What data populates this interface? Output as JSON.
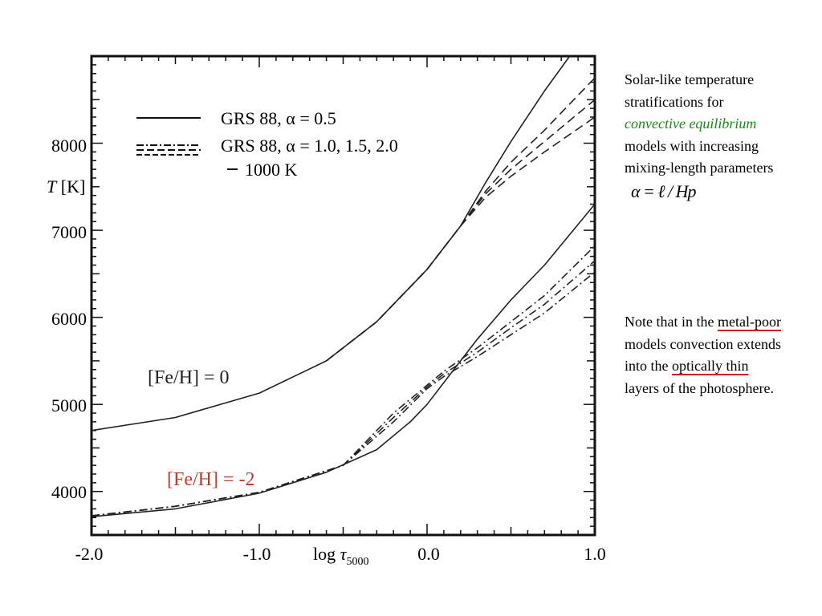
{
  "chart_data": {
    "type": "line",
    "xlabel": "log τ5000",
    "ylabel": "T [K]",
    "xlim": [
      -2.0,
      1.0
    ],
    "ylim": [
      3500,
      9000
    ],
    "xticks": [
      -2.0,
      -1.0,
      0.0,
      1.0
    ],
    "xtick_labels": [
      "-2.0",
      "-1.0",
      "0.0",
      "1.0"
    ],
    "yticks": [
      4000,
      5000,
      6000,
      7000,
      8000
    ],
    "ytick_labels": [
      "4000",
      "5000",
      "6000",
      "7000",
      "8000"
    ],
    "legend": {
      "placement": "top-left",
      "entries": [
        {
          "style": "solid",
          "label": "GRS 88, α = 0.5"
        },
        {
          "style": "dashed",
          "label": "GRS 88, α = 1.0, 1.5, 2.0"
        },
        {
          "style": "tick",
          "label": "1000 K"
        }
      ]
    },
    "annotations": [
      {
        "text": "[Fe/H] = 0",
        "color": "#222222"
      },
      {
        "text": "[Fe/H] = -2",
        "color": "#c0392b"
      }
    ],
    "series": [
      {
        "group": "[Fe/H] = 0",
        "style": "solid",
        "x": [
          -2.0,
          -1.5,
          -1.0,
          -0.6,
          -0.3,
          0.0,
          0.2,
          0.35,
          0.5,
          0.7,
          0.85
        ],
        "y": [
          4700,
          4850,
          5130,
          5500,
          5950,
          6550,
          7050,
          7550,
          8020,
          8600,
          9000
        ]
      },
      {
        "style": "dashed",
        "x": [
          -0.6,
          -0.3,
          0.0,
          0.2,
          0.35,
          0.5,
          0.7,
          1.0
        ],
        "y": [
          5500,
          5950,
          6550,
          7050,
          7450,
          7780,
          8150,
          8750
        ]
      },
      {
        "style": "dashed",
        "x": [
          -0.6,
          -0.3,
          0.0,
          0.2,
          0.35,
          0.5,
          0.7,
          1.0
        ],
        "y": [
          5500,
          5950,
          6550,
          7050,
          7420,
          7700,
          8020,
          8500
        ]
      },
      {
        "style": "dashed",
        "x": [
          -0.6,
          -0.3,
          0.0,
          0.2,
          0.35,
          0.5,
          0.7,
          1.0
        ],
        "y": [
          5500,
          5950,
          6550,
          7050,
          7380,
          7620,
          7900,
          8300
        ]
      },
      {
        "group": "[Fe/H] = -2",
        "style": "solid",
        "x": [
          -2.0,
          -1.5,
          -1.0,
          -0.6,
          -0.3,
          -0.1,
          0.0,
          0.1,
          0.3,
          0.5,
          0.7,
          1.0
        ],
        "y": [
          3710,
          3800,
          3980,
          4220,
          4480,
          4800,
          5000,
          5250,
          5750,
          6200,
          6600,
          7300
        ]
      },
      {
        "style": "dashdot",
        "x": [
          -2.0,
          -1.5,
          -1.0,
          -0.5,
          -0.2,
          0.0,
          0.1,
          0.3,
          0.5,
          0.7,
          1.0
        ],
        "y": [
          3720,
          3830,
          3990,
          4300,
          4900,
          5220,
          5380,
          5650,
          5950,
          6250,
          6820
        ]
      },
      {
        "style": "dashdot",
        "x": [
          -2.0,
          -1.5,
          -1.0,
          -0.5,
          -0.2,
          0.0,
          0.1,
          0.3,
          0.5,
          0.7,
          1.0
        ],
        "y": [
          3720,
          3830,
          3990,
          4300,
          4850,
          5200,
          5350,
          5600,
          5880,
          6150,
          6650
        ]
      },
      {
        "style": "dashdot",
        "x": [
          -2.0,
          -1.5,
          -1.0,
          -0.5,
          -0.2,
          0.0,
          0.1,
          0.3,
          0.5,
          0.7,
          1.0
        ],
        "y": [
          3720,
          3830,
          3990,
          4300,
          4800,
          5180,
          5320,
          5550,
          5800,
          6050,
          6520
        ]
      }
    ]
  },
  "notes": {
    "note1": {
      "line1": "Solar-like temperature stratifications for",
      "green": "convective equilibrium",
      "line2": "models with increasing mixing-length parameters",
      "formula": "α = ℓ / Hp"
    },
    "note2": {
      "a": "Note that in the",
      "b": "metal-poor",
      "c": "models convection extends into the",
      "d": "optically thin",
      "e": "layers of the photosphere."
    }
  }
}
